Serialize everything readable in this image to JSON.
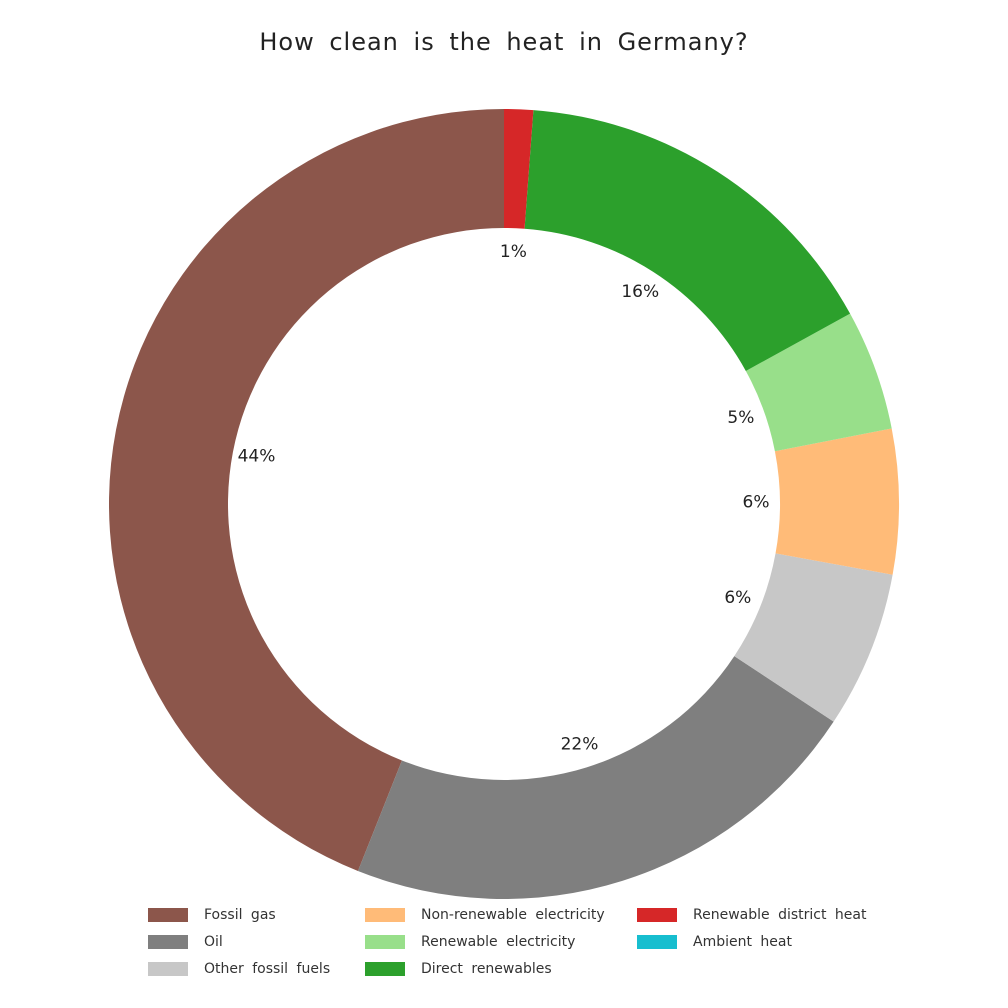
{
  "chart_data": {
    "type": "pie",
    "style": "donut",
    "title": "How clean is the heat in Germany?",
    "unit": "%",
    "categories": [
      "Fossil gas",
      "Oil",
      "Other fossil fuels",
      "Non-renewable electricity",
      "Renewable electricity",
      "Direct renewables",
      "Renewable district heat",
      "Ambient heat"
    ],
    "values": [
      44.5,
      22.0,
      6.5,
      6.0,
      5.0,
      16.0,
      1.2,
      0.0
    ],
    "data_labels": [
      "44%",
      "22%",
      "6%",
      "6%",
      "5%",
      "16%",
      "1%",
      ""
    ],
    "colors": [
      "#8c564b",
      "#7f7f7f",
      "#c7c7c7",
      "#ffbb78",
      "#98df8a",
      "#2ca02c",
      "#d62728",
      "#17becf"
    ],
    "direction": "counterclockwise",
    "start": "top",
    "legend": "bottom"
  }
}
